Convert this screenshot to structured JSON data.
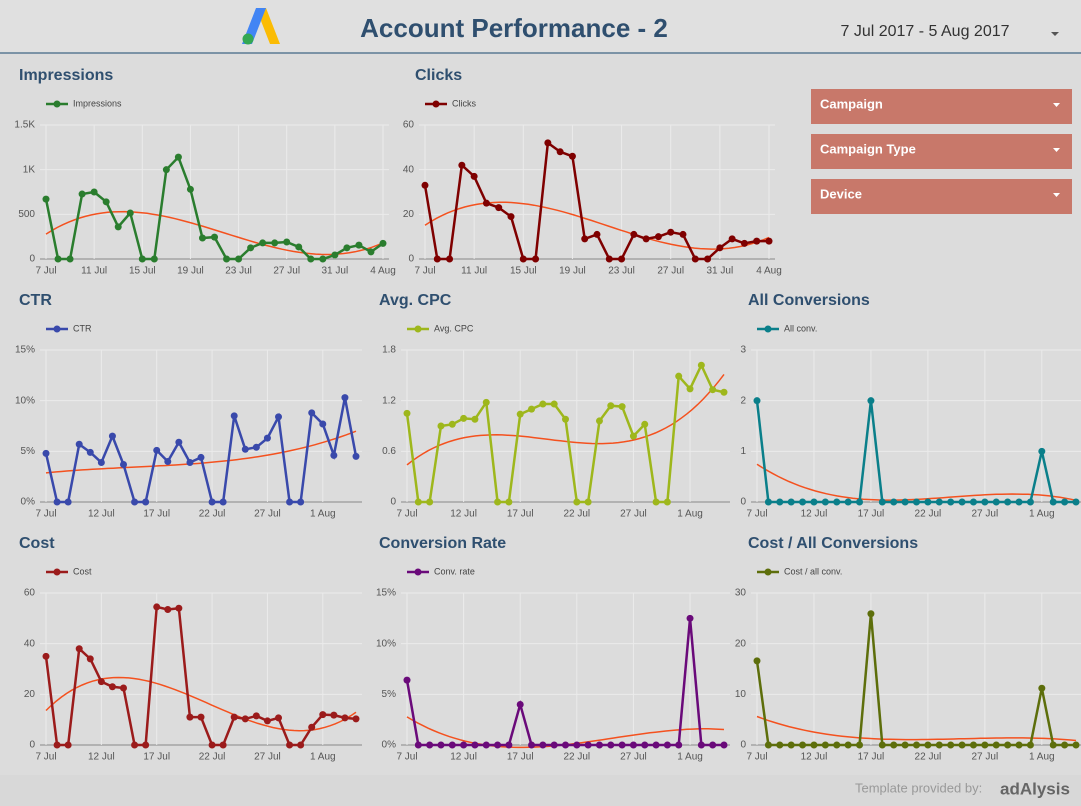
{
  "header": {
    "title": "Account Performance - 2",
    "date_range": "7 Jul 2017 - 5 Aug 2017"
  },
  "filters": [
    "Campaign",
    "Campaign Type",
    "Device"
  ],
  "footer": {
    "credit": "Template provided by:",
    "brand": "adAlysis"
  },
  "trend_color": "#f4511e",
  "chart_data": [
    {
      "type": "line",
      "title": "Impressions",
      "categories": [
        "7 Jul",
        null,
        null,
        null,
        "11 Jul",
        null,
        null,
        null,
        "15 Jul",
        null,
        null,
        null,
        "19 Jul",
        null,
        null,
        null,
        "23 Jul",
        null,
        null,
        null,
        "27 Jul",
        null,
        null,
        null,
        "31 Jul",
        null,
        null,
        null,
        "4 Aug"
      ],
      "series": [
        {
          "name": "Impressions",
          "color": "#2a7d2e",
          "values": [
            670,
            0,
            0,
            727,
            750,
            640,
            360,
            515,
            0,
            0,
            1000,
            1140,
            780,
            235,
            245,
            0,
            0,
            125,
            180,
            180,
            190,
            135,
            0,
            0,
            45,
            125,
            155,
            80,
            175
          ]
        }
      ],
      "ylim": [
        0,
        1500
      ],
      "yticks": [
        0,
        500,
        {
          "value": 1000,
          "label": "1K"
        },
        {
          "value": 1500,
          "label": "1.5K"
        }
      ],
      "grid": true,
      "trendline": true
    },
    {
      "type": "line",
      "title": "Clicks",
      "categories": [
        "7 Jul",
        null,
        null,
        null,
        "11 Jul",
        null,
        null,
        null,
        "15 Jul",
        null,
        null,
        null,
        "19 Jul",
        null,
        null,
        null,
        "23 Jul",
        null,
        null,
        null,
        "27 Jul",
        null,
        null,
        null,
        "31 Jul",
        null,
        null,
        null,
        "4 Aug"
      ],
      "series": [
        {
          "name": "Clicks",
          "color": "#7f0000",
          "values": [
            33,
            0,
            0,
            42,
            37,
            25,
            23,
            19,
            0,
            0,
            52,
            48,
            46,
            9,
            11,
            0,
            0,
            11,
            9,
            10,
            12,
            11,
            0,
            0,
            5,
            9,
            7,
            8,
            8
          ]
        }
      ],
      "ylim": [
        0,
        60
      ],
      "yticks": [
        0,
        20,
        40,
        60
      ],
      "grid": true,
      "trendline": true
    },
    {
      "type": "line",
      "title": "CTR",
      "categories": [
        "7 Jul",
        null,
        null,
        null,
        null,
        "12 Jul",
        null,
        null,
        null,
        null,
        "17 Jul",
        null,
        null,
        null,
        null,
        "22 Jul",
        null,
        null,
        null,
        null,
        "27 Jul",
        null,
        null,
        null,
        null,
        "1 Aug",
        null,
        null,
        null
      ],
      "series": [
        {
          "name": "CTR",
          "color": "#3949ab",
          "values": [
            4.8,
            0,
            0,
            5.7,
            4.9,
            3.9,
            6.5,
            3.7,
            0,
            0,
            5.1,
            4.0,
            5.9,
            3.9,
            4.4,
            0,
            0,
            8.5,
            5.2,
            5.4,
            6.3,
            8.4,
            0,
            0,
            8.8,
            7.7,
            4.6,
            10.3,
            4.5
          ]
        }
      ],
      "ylim": [
        0,
        15
      ],
      "yticks": [
        {
          "value": 0,
          "label": "0%"
        },
        {
          "value": 5,
          "label": "5%"
        },
        {
          "value": 10,
          "label": "10%"
        },
        {
          "value": 15,
          "label": "15%"
        }
      ],
      "grid": true,
      "trendline": true
    },
    {
      "type": "line",
      "title": "Avg. CPC",
      "categories": [
        "7 Jul",
        null,
        null,
        null,
        null,
        "12 Jul",
        null,
        null,
        null,
        null,
        "17 Jul",
        null,
        null,
        null,
        null,
        "22 Jul",
        null,
        null,
        null,
        null,
        "27 Jul",
        null,
        null,
        null,
        null,
        "1 Aug",
        null,
        null,
        null
      ],
      "series": [
        {
          "name": "Avg. CPC",
          "color": "#9eb71c",
          "values": [
            1.05,
            0,
            0,
            0.9,
            0.92,
            0.99,
            0.98,
            1.18,
            0,
            0,
            1.04,
            1.1,
            1.16,
            1.16,
            0.98,
            0,
            0,
            0.96,
            1.14,
            1.13,
            0.78,
            0.92,
            0,
            0,
            1.49,
            1.34,
            1.62,
            1.33,
            1.3
          ]
        }
      ],
      "ylim": [
        0,
        1.8
      ],
      "yticks": [
        0,
        0.6,
        1.2,
        1.8
      ],
      "grid": true,
      "trendline": true
    },
    {
      "type": "line",
      "title": "All Conversions",
      "categories": [
        "7 Jul",
        null,
        null,
        null,
        null,
        "12 Jul",
        null,
        null,
        null,
        null,
        "17 Jul",
        null,
        null,
        null,
        null,
        "22 Jul",
        null,
        null,
        null,
        null,
        "27 Jul",
        null,
        null,
        null,
        null,
        "1 Aug",
        null,
        null,
        null
      ],
      "series": [
        {
          "name": "All conv.",
          "color": "#0a7f8a",
          "values": [
            2,
            0,
            0,
            0,
            0,
            0,
            0,
            0,
            0,
            0,
            2,
            0,
            0,
            0,
            0,
            0,
            0,
            0,
            0,
            0,
            0,
            0,
            0,
            0,
            0,
            1,
            0,
            0,
            0
          ]
        }
      ],
      "ylim": [
        0,
        3
      ],
      "yticks": [
        0,
        1,
        2,
        3
      ],
      "grid": true,
      "trendline": true
    },
    {
      "type": "line",
      "title": "Cost",
      "categories": [
        "7 Jul",
        null,
        null,
        null,
        null,
        "12 Jul",
        null,
        null,
        null,
        null,
        "17 Jul",
        null,
        null,
        null,
        null,
        "22 Jul",
        null,
        null,
        null,
        null,
        "27 Jul",
        null,
        null,
        null,
        null,
        "1 Aug",
        null,
        null,
        null
      ],
      "series": [
        {
          "name": "Cost",
          "color": "#9b1b1b",
          "values": [
            35,
            0,
            0,
            38,
            34,
            25,
            23,
            22.5,
            0,
            0,
            54.5,
            53.5,
            54,
            11,
            11,
            0,
            0,
            11,
            10.3,
            11.5,
            9.5,
            10.7,
            0,
            0,
            7,
            12,
            11.8,
            10.7,
            10.3
          ]
        }
      ],
      "ylim": [
        0,
        60
      ],
      "yticks": [
        0,
        20,
        40,
        60
      ],
      "grid": true,
      "trendline": true
    },
    {
      "type": "line",
      "title": "Conversion Rate",
      "categories": [
        "7 Jul",
        null,
        null,
        null,
        null,
        "12 Jul",
        null,
        null,
        null,
        null,
        "17 Jul",
        null,
        null,
        null,
        null,
        "22 Jul",
        null,
        null,
        null,
        null,
        "27 Jul",
        null,
        null,
        null,
        null,
        "1 Aug",
        null,
        null,
        null
      ],
      "series": [
        {
          "name": "Conv. rate",
          "color": "#6a0a7a",
          "values": [
            6.4,
            0,
            0,
            0,
            0,
            0,
            0,
            0,
            0,
            0,
            4.0,
            0,
            0,
            0,
            0,
            0,
            0,
            0,
            0,
            0,
            0,
            0,
            0,
            0,
            0,
            12.5,
            0,
            0,
            0
          ]
        }
      ],
      "ylim": [
        0,
        15
      ],
      "yticks": [
        {
          "value": 0,
          "label": "0%"
        },
        {
          "value": 5,
          "label": "5%"
        },
        {
          "value": 10,
          "label": "10%"
        },
        {
          "value": 15,
          "label": "15%"
        }
      ],
      "grid": true,
      "trendline": true
    },
    {
      "type": "line",
      "title": "Cost / All Conversions",
      "categories": [
        "7 Jul",
        null,
        null,
        null,
        null,
        "12 Jul",
        null,
        null,
        null,
        null,
        "17 Jul",
        null,
        null,
        null,
        null,
        "22 Jul",
        null,
        null,
        null,
        null,
        "27 Jul",
        null,
        null,
        null,
        null,
        "1 Aug",
        null,
        null,
        null
      ],
      "series": [
        {
          "name": "Cost / all conv.",
          "color": "#5d6e0b",
          "values": [
            16.6,
            0,
            0,
            0,
            0,
            0,
            0,
            0,
            0,
            0,
            25.9,
            0,
            0,
            0,
            0,
            0,
            0,
            0,
            0,
            0,
            0,
            0,
            0,
            0,
            0,
            11.2,
            0,
            0,
            0
          ]
        }
      ],
      "ylim": [
        0,
        30
      ],
      "yticks": [
        0,
        10,
        20,
        30
      ],
      "grid": true,
      "trendline": true
    }
  ]
}
